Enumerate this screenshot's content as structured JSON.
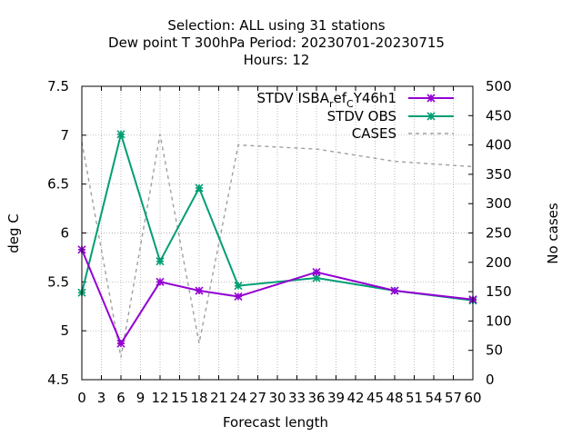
{
  "chart_data": {
    "type": "line",
    "title_lines": [
      "Selection: ALL using    31 stations",
      "Dew point T 300hPa   Period: 20230701-20230715",
      "Hours:  12"
    ],
    "xlabel": "Forecast length",
    "ylabel": "deg C",
    "y2label": "No cases",
    "xlim": [
      0,
      60
    ],
    "ylim": [
      4.5,
      7.5
    ],
    "y2lim": [
      0,
      500
    ],
    "x_ticks": [
      0,
      3,
      6,
      9,
      12,
      15,
      18,
      21,
      24,
      27,
      30,
      33,
      36,
      39,
      42,
      45,
      48,
      51,
      54,
      57,
      60
    ],
    "y_ticks": [
      4.5,
      5,
      5.5,
      6,
      6.5,
      7,
      7.5
    ],
    "y_tick_labels": [
      "4.5",
      "5",
      "5.5",
      "6",
      "6.5",
      "7",
      "7.5"
    ],
    "y2_ticks": [
      0,
      50,
      100,
      150,
      200,
      250,
      300,
      350,
      400,
      450,
      500
    ],
    "grid": true,
    "legend_position": "top-right",
    "series": [
      {
        "name_main": "STDV ISBA",
        "name_sub1": "r",
        "name_mid": "ef",
        "name_sub2": "C",
        "name_tail": "Y46h1",
        "color": "#9400d3",
        "style": "solid",
        "marker": "star",
        "axis": "y",
        "x": [
          0,
          6,
          12,
          18,
          24,
          36,
          48,
          60
        ],
        "values": [
          5.83,
          4.87,
          5.5,
          5.41,
          5.35,
          5.6,
          5.41,
          5.32
        ]
      },
      {
        "name": "STDV OBS",
        "color": "#009e73",
        "style": "solid",
        "marker": "star",
        "axis": "y",
        "x": [
          0,
          6,
          12,
          18,
          24,
          36,
          48,
          60
        ],
        "values": [
          5.39,
          7.01,
          5.71,
          6.46,
          5.46,
          5.54,
          5.41,
          5.31
        ]
      },
      {
        "name": "CASES",
        "color": "#a0a0a0",
        "style": "dashed",
        "marker": "none",
        "axis": "y2",
        "x": [
          0,
          6,
          12,
          18,
          24,
          36,
          48,
          60
        ],
        "values": [
          405,
          38,
          418,
          62,
          400,
          393,
          372,
          363
        ]
      }
    ]
  }
}
